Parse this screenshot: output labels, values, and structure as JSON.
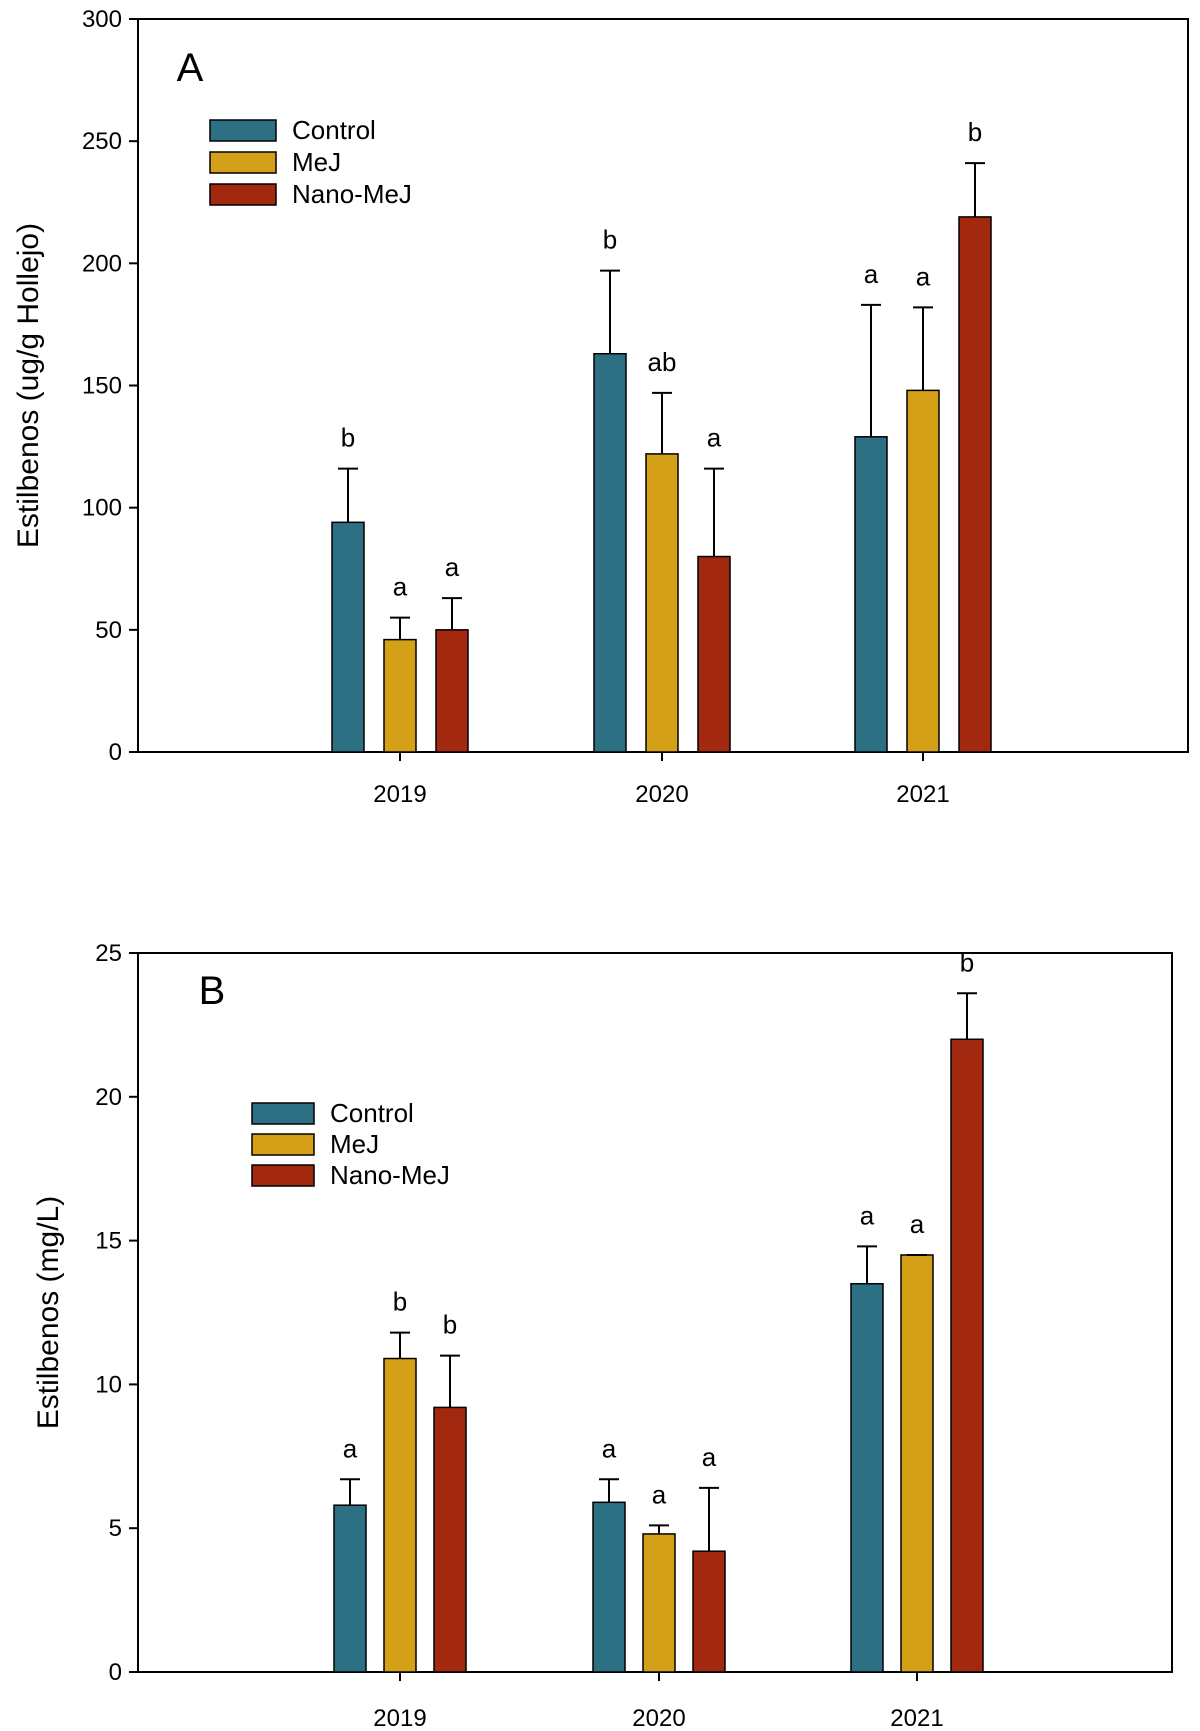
{
  "chart_data": [
    {
      "type": "bar",
      "panel_label": "A",
      "categories": [
        "2019",
        "2020",
        "2021"
      ],
      "ylabel": "Estilbenos (ug/g Hollejo)",
      "xlabel": "",
      "ylim": [
        0,
        300
      ],
      "yticks": [
        "0",
        "50",
        "100",
        "150",
        "200",
        "250",
        "300"
      ],
      "legend_position": "top-left",
      "series": [
        {
          "name": "Control",
          "color": "#2E7083",
          "values": [
            94,
            163,
            129
          ],
          "errors": [
            22,
            34,
            54
          ],
          "letters": [
            "b",
            "b",
            "a"
          ]
        },
        {
          "name": "MeJ",
          "color": "#D4A017",
          "values": [
            46,
            122,
            148
          ],
          "errors": [
            9,
            25,
            34
          ],
          "letters": [
            "a",
            "ab",
            "a"
          ]
        },
        {
          "name": "Nano-MeJ",
          "color": "#A32810",
          "values": [
            50,
            80,
            219
          ],
          "errors": [
            13,
            36,
            22
          ],
          "letters": [
            "a",
            "a",
            "b"
          ]
        }
      ]
    },
    {
      "type": "bar",
      "panel_label": "B",
      "categories": [
        "2019",
        "2020",
        "2021"
      ],
      "ylabel": "Estilbenos (mg/L)",
      "xlabel": "",
      "ylim": [
        0,
        25
      ],
      "yticks": [
        "0",
        "5",
        "10",
        "15",
        "20",
        "25"
      ],
      "legend_position": "top-left",
      "series": [
        {
          "name": "Control",
          "color": "#2E7083",
          "values": [
            5.8,
            5.9,
            13.5
          ],
          "errors": [
            0.9,
            0.8,
            1.3
          ],
          "letters": [
            "a",
            "a",
            "a"
          ]
        },
        {
          "name": "MeJ",
          "color": "#D4A017",
          "values": [
            10.9,
            4.8,
            14.5
          ],
          "errors": [
            0.9,
            0.3,
            0.0
          ],
          "letters": [
            "b",
            "a",
            "a"
          ]
        },
        {
          "name": "Nano-MeJ",
          "color": "#A32810",
          "values": [
            9.2,
            4.2,
            22.0
          ],
          "errors": [
            1.8,
            2.2,
            1.6
          ],
          "letters": [
            "b",
            "a",
            "b"
          ]
        }
      ]
    }
  ]
}
